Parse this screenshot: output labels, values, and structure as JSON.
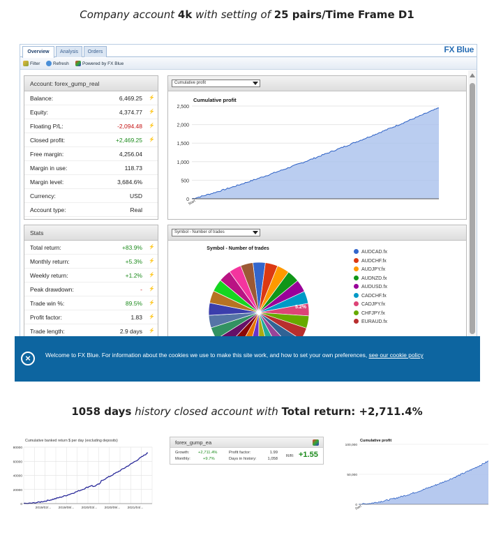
{
  "captions": {
    "top": {
      "p1": "Company account ",
      "b1": "4k",
      "p2": " with setting of ",
      "b2": "25 pairs/Time Frame D1"
    },
    "mid": {
      "b1": "1058 days",
      "p1": " history closed account with ",
      "b2": "Total return: +2,711.4%"
    }
  },
  "fx": {
    "tabs": [
      "Overview",
      "Analysis",
      "Orders"
    ],
    "brand": "FX Blue",
    "toolbar": {
      "filter": "Filter",
      "refresh": "Refresh",
      "powered": "Powered by FX Blue"
    }
  },
  "account": {
    "title": "Account: forex_gump_real",
    "rows": [
      {
        "k": "Balance:",
        "v": "6,469.25"
      },
      {
        "k": "Equity:",
        "v": "4,374.77"
      },
      {
        "k": "Floating P/L:",
        "v": "-2,094.48"
      },
      {
        "k": "Closed profit:",
        "v": "+2,469.25"
      },
      {
        "k": "Free margin:",
        "v": "4,256.04"
      },
      {
        "k": "Margin in use:",
        "v": "118.73"
      },
      {
        "k": "Margin level:",
        "v": "3,684.6%"
      },
      {
        "k": "Currency:",
        "v": "USD"
      },
      {
        "k": "Account type:",
        "v": "Real"
      }
    ]
  },
  "stats": {
    "title": "Stats",
    "rows": [
      {
        "k": "Total return:",
        "v": "+83.9%"
      },
      {
        "k": "Monthly return:",
        "v": "+5.3%"
      },
      {
        "k": "Weekly return:",
        "v": "+1.2%"
      },
      {
        "k": "Peak drawdown:",
        "v": "-"
      },
      {
        "k": "Trade win %:",
        "v": "89.5%"
      },
      {
        "k": "Profit factor:",
        "v": "1.83"
      },
      {
        "k": "Trade length:",
        "v": "2.9 days"
      }
    ]
  },
  "cum_chart": {
    "select": "Cumulative profit",
    "title": "Cumulative profit",
    "yticks": [
      "2,500",
      "2,000",
      "1,500",
      "1,000",
      "500",
      "0"
    ],
    "xtick_first": "Start"
  },
  "pie_chart": {
    "select": "Symbol - Number of trades",
    "title": "Symbol - Number of trades",
    "slice_label": "5.2%",
    "legend": [
      {
        "name": "AUDCAD.fx",
        "color": "#3366cc"
      },
      {
        "name": "AUDCHF.fx",
        "color": "#dc3912"
      },
      {
        "name": "AUDJPY.fx",
        "color": "#ff9900"
      },
      {
        "name": "AUDNZD.fx",
        "color": "#109618"
      },
      {
        "name": "AUDUSD.fx",
        "color": "#990099"
      },
      {
        "name": "CADCHF.fx",
        "color": "#0099c6"
      },
      {
        "name": "CADJPY.fx",
        "color": "#dd4477"
      },
      {
        "name": "CHFJPY.fx",
        "color": "#66aa00"
      },
      {
        "name": "EURAUD.fx",
        "color": "#b82e2e"
      }
    ]
  },
  "cookie": {
    "text": "Welcome to FX Blue. For information about the cookies we use to make this site work, and how to set your own preferences, ",
    "link": "see our cookie policy"
  },
  "bottom": {
    "left_chart": {
      "title": "Cumulative banked return $ per day (excluding deposits)",
      "yticks": [
        "80000",
        "60000",
        "40000",
        "20000",
        "0"
      ],
      "xticks": [
        "2019/02/...",
        "2019/08/...",
        "2020/03/...",
        "2020/09/...",
        "2021/04/..."
      ]
    },
    "card": {
      "title": "forex_gump_ea",
      "growth_label": "Growth:",
      "growth": "+2,711.4%",
      "monthly_label": "Monthly:",
      "monthly": "+9.7%",
      "pf_label": "Profit factor:",
      "pf": "1.99",
      "days_label": "Days in history:",
      "days": "1,058",
      "rr_label": "R/R:",
      "rr": "+1.55"
    },
    "right_chart": {
      "title": "Cumulative profit",
      "yticks": [
        "100,000",
        "50,000",
        "0"
      ],
      "xtick_first": "Start"
    }
  }
}
